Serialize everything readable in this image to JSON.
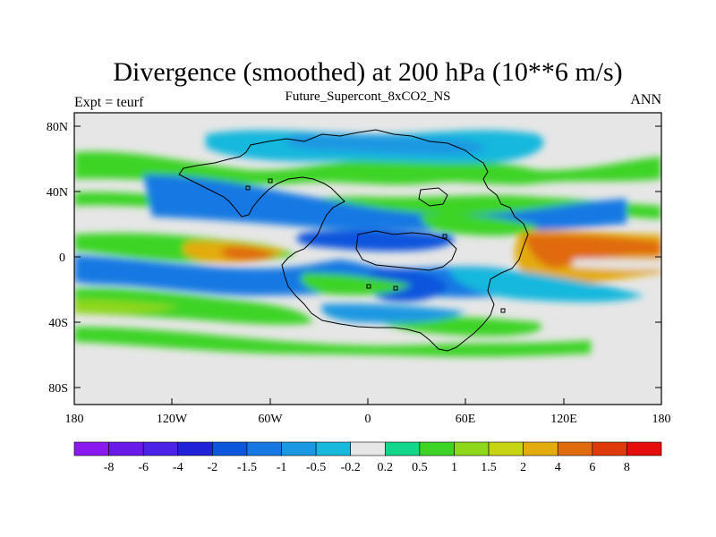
{
  "title": "Divergence (smoothed) at 200 hPa (10**6 m/s)",
  "left_label": "Expt = teurf",
  "center_label": "Future_Supercont_8xCO2_NS",
  "right_label": "ANN",
  "lat_ticks": [
    "80N",
    "40N",
    "0",
    "40S",
    "80S"
  ],
  "lon_ticks": [
    "180",
    "120W",
    "60W",
    "0",
    "60E",
    "120E",
    "180"
  ],
  "colorbar": {
    "labels": [
      "-8",
      "-6",
      "-4",
      "-2",
      "-1.5",
      "-1",
      "-0.5",
      "-0.2",
      "0.2",
      "0.5",
      "1",
      "1.5",
      "2",
      "4",
      "6",
      "8"
    ],
    "colors": [
      "#8a19f0",
      "#6a1ae8",
      "#4b23e6",
      "#1f22d6",
      "#0c55dd",
      "#1679e3",
      "#1a98e2",
      "#19b8dd",
      "#e6e6e6",
      "#12d68a",
      "#3ed425",
      "#8fd71a",
      "#c6d414",
      "#e3ab0d",
      "#e06b0b",
      "#e03a0a",
      "#e60d0d"
    ]
  },
  "colors": {
    "background_field": "#e6e6e6",
    "coast": "#000000"
  }
}
